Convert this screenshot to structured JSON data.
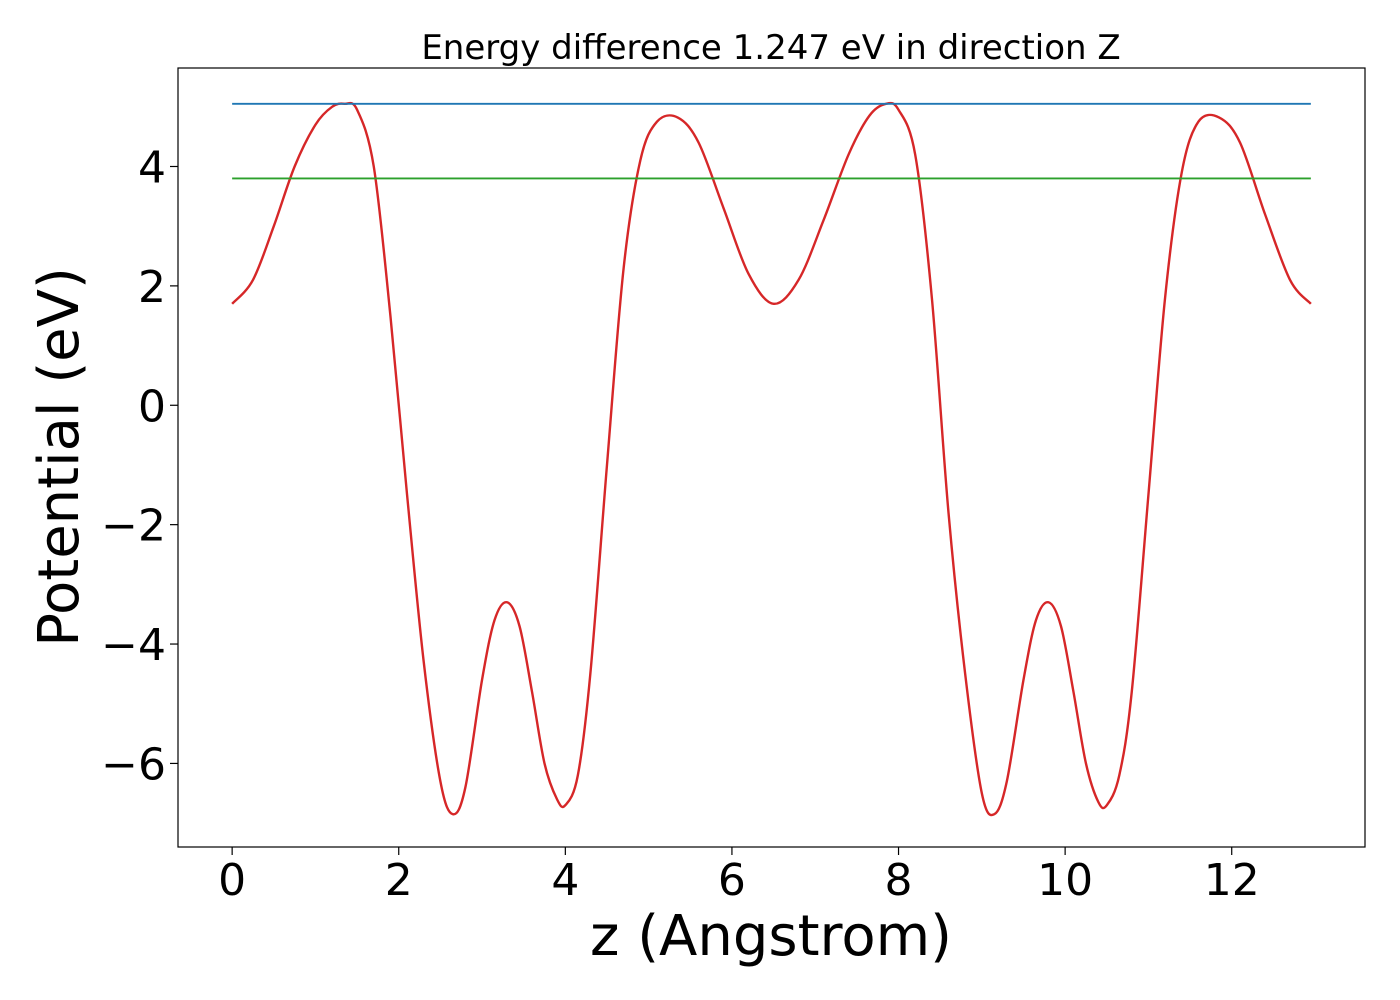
{
  "chart_data": {
    "type": "line",
    "title": "Energy difference 1.247 eV in direction Z",
    "xlabel": "z (Angstrom)",
    "ylabel": "Potential (eV)",
    "xlim": [
      -0.65,
      13.6
    ],
    "ylim": [
      -7.4,
      5.65
    ],
    "xticks": [
      0,
      2,
      4,
      6,
      8,
      10,
      12
    ],
    "xtick_labels": [
      "0",
      "2",
      "4",
      "6",
      "8",
      "10",
      "12"
    ],
    "yticks": [
      -6,
      -4,
      -2,
      0,
      2,
      4
    ],
    "ytick_labels": [
      "−6",
      "−4",
      "−2",
      "0",
      "2",
      "4"
    ],
    "grid": false,
    "legend": "none",
    "series": [
      {
        "color": "#d62728",
        "x": [
          0,
          0.25,
          0.5,
          0.75,
          1.0,
          1.2,
          1.35,
          1.5,
          1.7,
          1.9,
          2.1,
          2.3,
          2.5,
          2.65,
          2.8,
          3.0,
          3.15,
          3.3,
          3.45,
          3.6,
          3.75,
          3.9,
          4.0,
          4.15,
          4.3,
          4.5,
          4.7,
          4.9,
          5.1,
          5.35,
          5.6,
          5.9,
          6.2,
          6.5,
          6.8,
          7.1,
          7.4,
          7.65,
          7.85,
          8.0,
          8.2,
          8.4,
          8.6,
          8.8,
          9.0,
          9.15,
          9.3,
          9.5,
          9.65,
          9.8,
          9.95,
          10.1,
          10.25,
          10.4,
          10.5,
          10.65,
          10.8,
          11.0,
          11.2,
          11.4,
          11.6,
          11.85,
          12.1,
          12.4,
          12.7,
          12.95
        ],
        "y": [
          1.7,
          2.1,
          3.0,
          4.0,
          4.7,
          5.0,
          5.05,
          4.95,
          4.0,
          1.5,
          -1.5,
          -4.3,
          -6.3,
          -6.85,
          -6.4,
          -4.6,
          -3.6,
          -3.3,
          -3.7,
          -4.8,
          -6.0,
          -6.6,
          -6.7,
          -6.2,
          -4.5,
          -1.0,
          2.3,
          4.1,
          4.75,
          4.82,
          4.4,
          3.3,
          2.2,
          1.7,
          2.1,
          3.1,
          4.2,
          4.85,
          5.05,
          4.95,
          4.2,
          1.8,
          -1.8,
          -4.5,
          -6.5,
          -6.85,
          -6.3,
          -4.6,
          -3.6,
          -3.3,
          -3.7,
          -4.8,
          -6.0,
          -6.65,
          -6.7,
          -6.2,
          -4.8,
          -1.5,
          1.8,
          3.9,
          4.75,
          4.82,
          4.4,
          3.2,
          2.1,
          1.7
        ]
      },
      {
        "color": "#1f77b4",
        "x": [
          0,
          12.95
        ],
        "y": [
          5.05,
          5.05
        ]
      },
      {
        "color": "#2ca02c",
        "x": [
          0,
          12.95
        ],
        "y": [
          3.8,
          3.8
        ]
      }
    ]
  }
}
